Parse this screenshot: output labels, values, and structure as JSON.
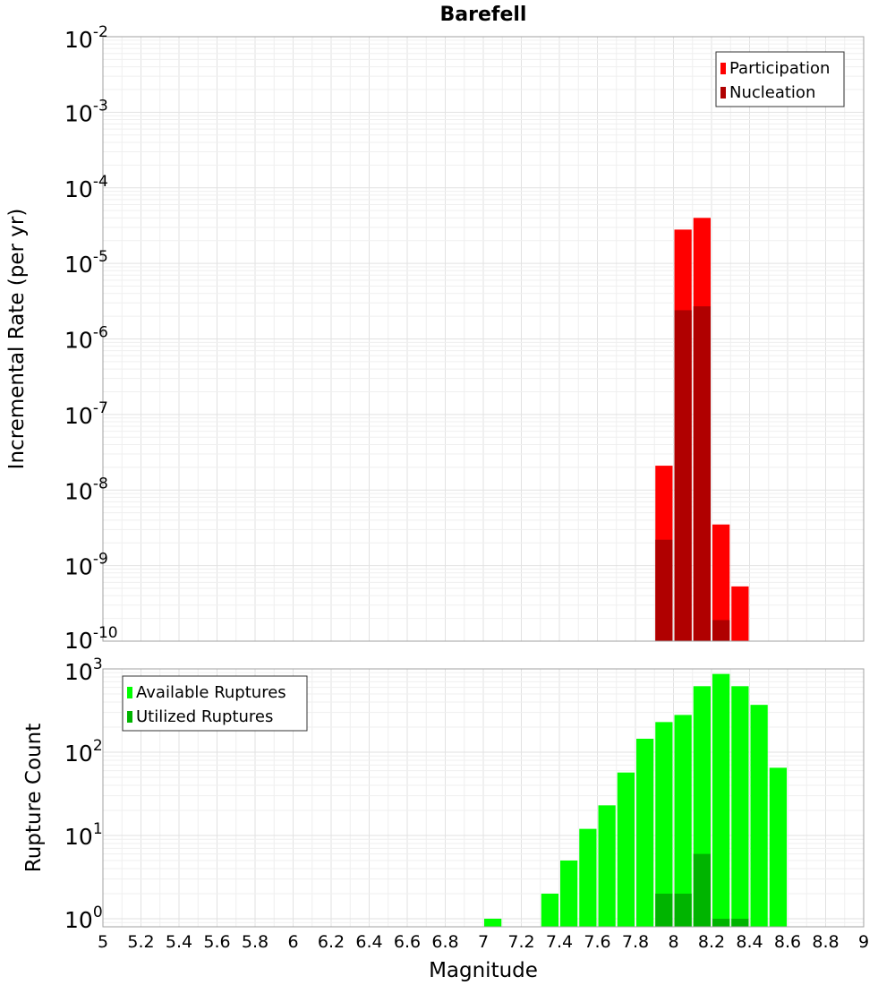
{
  "chart_data": [
    {
      "type": "bar",
      "title": "Barefell",
      "xlabel": "",
      "ylabel": "Incremental Rate (per yr)",
      "x_range": [
        5,
        9
      ],
      "y_scale": "log",
      "ylim": [
        1e-10,
        0.01
      ],
      "y_ticks": [
        {
          "base": "10",
          "exp": "-2",
          "value": 0.01
        },
        {
          "base": "10",
          "exp": "-3",
          "value": 0.001
        },
        {
          "base": "10",
          "exp": "-4",
          "value": 0.0001
        },
        {
          "base": "10",
          "exp": "-5",
          "value": 1e-05
        },
        {
          "base": "10",
          "exp": "-6",
          "value": 1e-06
        },
        {
          "base": "10",
          "exp": "-7",
          "value": 1e-07
        },
        {
          "base": "10",
          "exp": "-8",
          "value": 1e-08
        },
        {
          "base": "10",
          "exp": "-9",
          "value": 1e-09
        },
        {
          "base": "10",
          "exp": "-10",
          "value": 1e-10
        }
      ],
      "grid": true,
      "legend_position": "top-right",
      "bin_width": 0.1,
      "series": [
        {
          "name": "Participation",
          "color": "#ff0000",
          "x": [
            7.95,
            8.05,
            8.15,
            8.25,
            8.35
          ],
          "values": [
            2.1e-08,
            2.8e-05,
            4e-05,
            3.5e-09,
            5.3e-10
          ]
        },
        {
          "name": "Nucleation",
          "color": "#b00000",
          "x": [
            7.95,
            8.05,
            8.15,
            8.25
          ],
          "values": [
            2.2e-09,
            2.4e-06,
            2.7e-06,
            1.9e-10
          ]
        }
      ]
    },
    {
      "type": "bar",
      "title": "",
      "xlabel": "Magnitude",
      "ylabel": "Rupture Count",
      "x_range": [
        5,
        9
      ],
      "x_ticks": [
        "5",
        "5.2",
        "5.4",
        "5.6",
        "5.8",
        "6",
        "6.2",
        "6.4",
        "6.6",
        "6.8",
        "7",
        "7.2",
        "7.4",
        "7.6",
        "7.8",
        "8",
        "8.2",
        "8.4",
        "8.6",
        "8.8",
        "9"
      ],
      "y_scale": "log",
      "ylim": [
        0.8,
        1000
      ],
      "y_ticks": [
        {
          "base": "10",
          "exp": "3",
          "value": 1000
        },
        {
          "base": "10",
          "exp": "2",
          "value": 100
        },
        {
          "base": "10",
          "exp": "1",
          "value": 10
        },
        {
          "base": "10",
          "exp": "0",
          "value": 1
        }
      ],
      "grid": true,
      "legend_position": "top-left",
      "bin_width": 0.1,
      "series": [
        {
          "name": "Available Ruptures",
          "color": "#00ff00",
          "x": [
            7.05,
            7.35,
            7.45,
            7.55,
            7.65,
            7.75,
            7.85,
            7.95,
            8.05,
            8.15,
            8.25,
            8.35,
            8.45,
            8.55
          ],
          "values": [
            1,
            2,
            5,
            12,
            23,
            57,
            145,
            230,
            280,
            620,
            870,
            620,
            370,
            65
          ]
        },
        {
          "name": "Utilized Ruptures",
          "color": "#00b400",
          "x": [
            7.95,
            8.05,
            8.15,
            8.25,
            8.35
          ],
          "values": [
            2,
            2,
            6,
            1,
            1
          ]
        }
      ]
    }
  ]
}
